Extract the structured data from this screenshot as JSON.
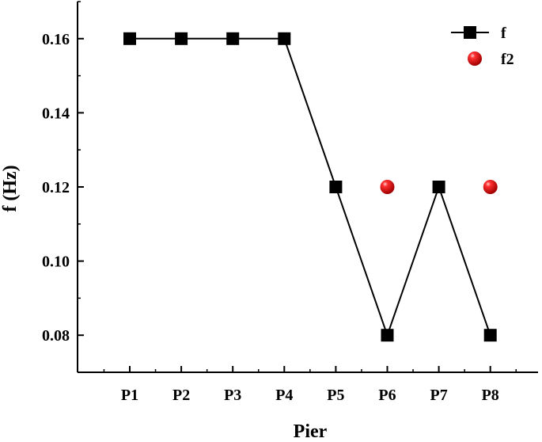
{
  "chart_data": {
    "type": "line",
    "categories": [
      "P1",
      "P2",
      "P3",
      "P4",
      "P5",
      "P6",
      "P7",
      "P8"
    ],
    "xlabel": "Pier",
    "ylabel": "f (Hz)",
    "ylim": [
      0.07,
      0.17
    ],
    "yticks": [
      "0.08",
      "0.10",
      "0.12",
      "0.14",
      "0.16"
    ],
    "grid": false,
    "legend_position": "top-right",
    "series": [
      {
        "name": "f",
        "style": "line-with-square-markers",
        "color": "#000000",
        "values": [
          0.16,
          0.16,
          0.16,
          0.16,
          0.12,
          0.08,
          0.12,
          0.08
        ]
      },
      {
        "name": "f2",
        "style": "sphere-markers",
        "color": "#ff0000",
        "points": [
          {
            "x": "P6",
            "y": 0.12
          },
          {
            "x": "P8",
            "y": 0.12
          }
        ]
      }
    ]
  }
}
